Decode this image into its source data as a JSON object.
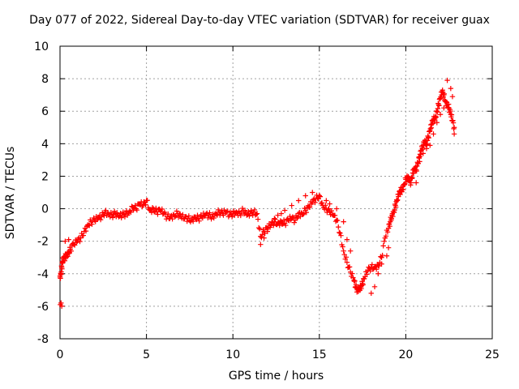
{
  "chart_data": {
    "type": "scatter",
    "title": "Day 077 of 2022, Sidereal Day-to-day VTEC variation (SDTVAR) for receiver guax",
    "xlabel": "GPS time / hours",
    "ylabel": "SDTVAR / TECUs",
    "xlim": [
      0,
      25
    ],
    "ylim": [
      -8,
      10
    ],
    "xticks": [
      0,
      5,
      10,
      15,
      20,
      25
    ],
    "yticks": [
      -8,
      -6,
      -4,
      -2,
      0,
      2,
      4,
      6,
      8,
      10
    ],
    "grid": true,
    "marker": "+",
    "color": "#ff0000",
    "series": [
      {
        "name": "SDTVAR",
        "x": [
          0.0,
          0.05,
          0.1,
          0.15,
          0.2,
          0.3,
          0.4,
          0.5,
          0.6,
          0.8,
          1.0,
          1.2,
          1.4,
          1.6,
          1.8,
          2.0,
          2.2,
          2.4,
          2.6,
          2.8,
          3.0,
          3.2,
          3.4,
          3.6,
          3.8,
          4.0,
          4.2,
          4.4,
          4.6,
          4.8,
          5.0,
          5.2,
          5.4,
          5.6,
          5.8,
          6.0,
          6.2,
          6.4,
          6.6,
          6.8,
          7.0,
          7.2,
          7.4,
          7.6,
          7.8,
          8.0,
          8.2,
          8.4,
          8.6,
          8.8,
          9.0,
          9.2,
          9.4,
          9.6,
          9.8,
          10.0,
          10.2,
          10.4,
          10.6,
          10.8,
          11.0,
          11.2,
          11.4,
          11.6,
          11.8,
          12.0,
          12.2,
          12.4,
          12.6,
          12.8,
          13.0,
          13.2,
          13.4,
          13.6,
          13.8,
          14.0,
          14.2,
          14.4,
          14.6,
          14.8,
          15.0,
          15.2,
          15.4,
          15.6,
          15.8,
          16.0,
          16.2,
          16.4,
          16.6,
          16.8,
          17.0,
          17.1,
          17.2,
          17.3,
          17.4,
          17.5,
          17.6,
          17.8,
          18.0,
          18.2,
          18.4,
          18.6,
          18.8,
          19.0,
          19.1,
          19.2,
          19.3,
          19.4,
          19.5,
          19.6,
          19.7,
          19.8,
          19.9,
          20.0,
          20.1,
          20.2,
          20.3,
          20.4,
          20.5,
          20.6,
          20.7,
          20.8,
          20.9,
          21.0,
          21.1,
          21.2,
          21.3,
          21.4,
          21.5,
          21.6,
          21.7,
          21.8,
          21.9,
          22.0,
          22.1,
          22.2,
          22.3,
          22.4,
          22.5,
          22.6,
          22.7,
          22.8
        ],
        "y": [
          -4.2,
          -4.0,
          -3.6,
          -3.3,
          -3.1,
          -3.0,
          -2.8,
          -2.7,
          -2.5,
          -2.2,
          -2.0,
          -1.8,
          -1.4,
          -1.0,
          -0.8,
          -0.7,
          -0.6,
          -0.5,
          -0.2,
          -0.3,
          -0.4,
          -0.3,
          -0.5,
          -0.4,
          -0.3,
          -0.2,
          0.1,
          0.0,
          0.3,
          0.2,
          0.5,
          -0.1,
          0.0,
          -0.2,
          -0.1,
          -0.3,
          -0.5,
          -0.5,
          -0.4,
          -0.3,
          -0.5,
          -0.6,
          -0.6,
          -0.7,
          -0.5,
          -0.6,
          -0.5,
          -0.4,
          -0.4,
          -0.5,
          -0.3,
          -0.2,
          -0.3,
          -0.2,
          -0.4,
          -0.3,
          -0.2,
          -0.3,
          -0.1,
          -0.4,
          -0.3,
          -0.2,
          -0.3,
          -1.7,
          -1.4,
          -1.2,
          -1.0,
          -0.8,
          -0.9,
          -0.8,
          -0.9,
          -0.7,
          -0.6,
          -0.7,
          -0.3,
          -0.3,
          -0.1,
          0.1,
          0.4,
          0.6,
          0.8,
          0.2,
          0.0,
          -0.2,
          -0.4,
          -0.7,
          -1.5,
          -2.6,
          -3.3,
          -3.9,
          -4.4,
          -4.8,
          -5.0,
          -4.9,
          -4.8,
          -4.6,
          -4.3,
          -3.8,
          -3.6,
          -3.6,
          -3.5,
          -3.0,
          -1.8,
          -1.2,
          -0.8,
          -0.4,
          -0.2,
          0.2,
          0.5,
          0.9,
          1.1,
          1.2,
          1.5,
          1.8,
          1.9,
          1.7,
          1.6,
          2.2,
          2.5,
          2.4,
          2.8,
          3.2,
          3.6,
          3.9,
          4.2,
          4.0,
          4.4,
          4.8,
          5.2,
          5.5,
          5.6,
          6.0,
          6.4,
          6.8,
          7.2,
          7.0,
          6.6,
          6.4,
          6.2,
          5.8,
          5.4,
          5.0
        ],
        "extra_x": [
          0.02,
          0.06,
          0.1,
          0.3,
          0.5,
          0.7,
          11.6,
          11.8,
          12.0,
          12.2,
          12.4,
          12.6,
          12.8,
          13.0,
          13.4,
          13.8,
          14.2,
          14.6,
          15.0,
          15.4,
          15.6,
          16.0,
          16.4,
          16.6,
          16.8,
          18.0,
          18.2,
          18.4,
          18.6,
          18.9,
          19.0,
          20.6,
          20.8,
          21.0,
          21.2,
          21.4,
          21.6,
          21.8,
          22.0,
          22.2,
          22.4,
          22.6,
          22.7,
          22.8
        ],
        "extra_y": [
          -5.9,
          -5.8,
          -6.0,
          -2.0,
          -1.9,
          -2.2,
          -2.2,
          -1.8,
          -1.4,
          -1.0,
          -0.6,
          -0.4,
          -0.3,
          -0.1,
          0.2,
          0.5,
          0.8,
          1.0,
          0.8,
          0.5,
          0.3,
          0.0,
          -0.8,
          -1.9,
          -2.6,
          -5.2,
          -4.8,
          -4.0,
          -3.4,
          -2.9,
          -2.4,
          1.6,
          2.9,
          3.4,
          3.7,
          3.9,
          4.6,
          5.3,
          5.8,
          6.2,
          7.9,
          7.4,
          6.9,
          4.6
        ]
      }
    ]
  }
}
